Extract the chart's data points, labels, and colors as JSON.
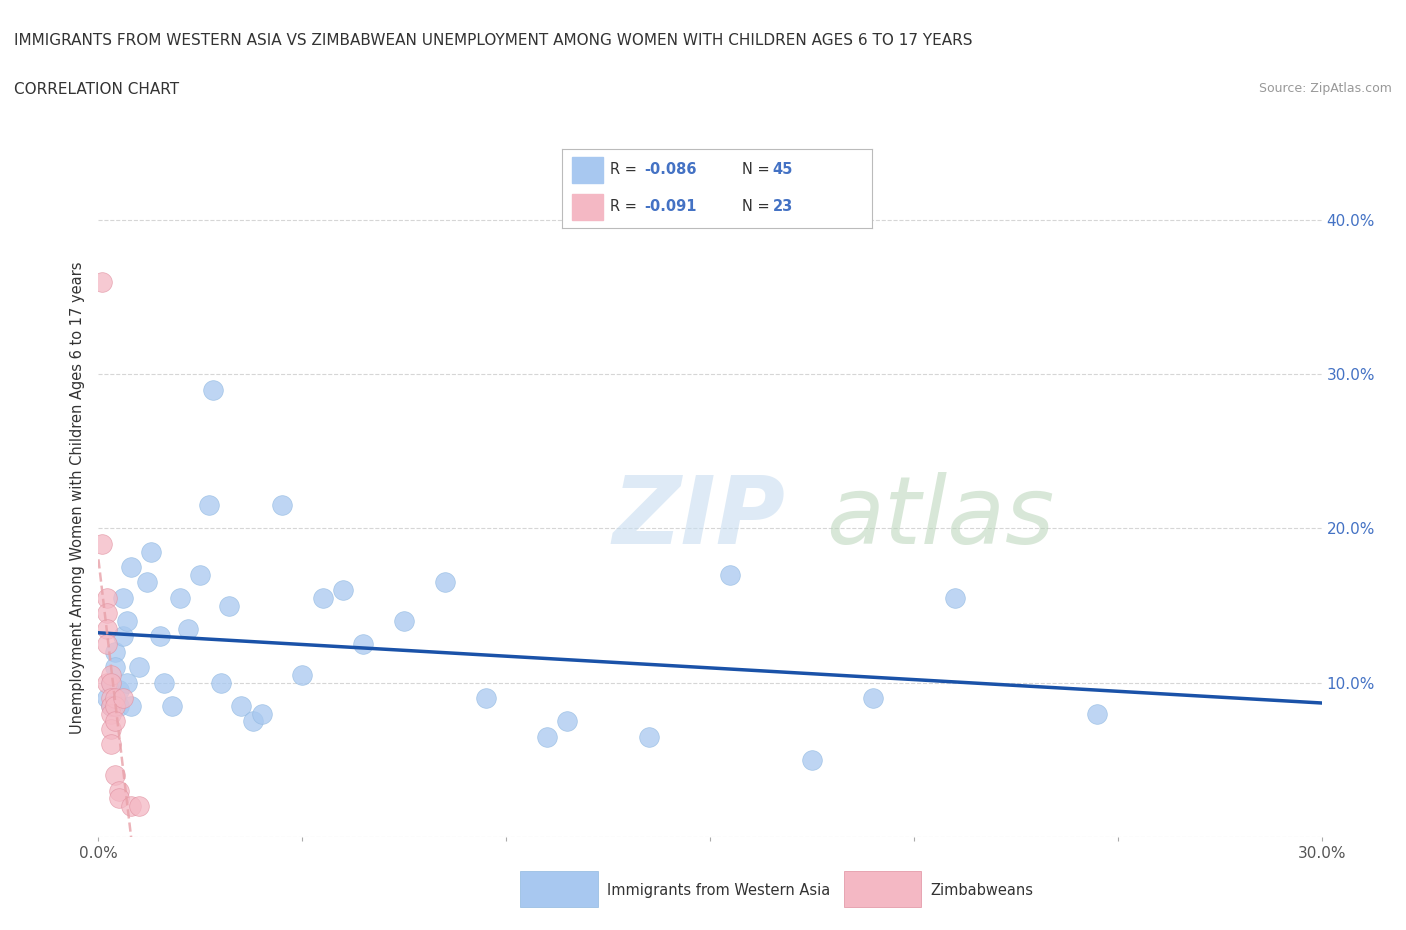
{
  "title": "IMMIGRANTS FROM WESTERN ASIA VS ZIMBABWEAN UNEMPLOYMENT AMONG WOMEN WITH CHILDREN AGES 6 TO 17 YEARS",
  "subtitle": "CORRELATION CHART",
  "source": "Source: ZipAtlas.com",
  "ylabel": "Unemployment Among Women with Children Ages 6 to 17 years",
  "xlim": [
    0.0,
    0.3
  ],
  "ylim": [
    0.0,
    0.44
  ],
  "xtick_positions": [
    0.0,
    0.05,
    0.1,
    0.15,
    0.2,
    0.25,
    0.3
  ],
  "xticklabels": [
    "0.0%",
    "",
    "",
    "",
    "",
    "",
    "30.0%"
  ],
  "ytick_right_positions": [
    0.1,
    0.2,
    0.3,
    0.4
  ],
  "ytick_right_labels": [
    "10.0%",
    "20.0%",
    "30.0%",
    "40.0%"
  ],
  "blue_R": -0.086,
  "blue_N": 45,
  "pink_R": -0.091,
  "pink_N": 23,
  "blue_color": "#a8c8f0",
  "pink_color": "#f4b8c4",
  "blue_line_color": "#1a52a8",
  "pink_line_color": "#e8a0a8",
  "legend1_label": "Immigrants from Western Asia",
  "legend2_label": "Zimbabweans",
  "blue_x": [
    0.002,
    0.003,
    0.003,
    0.004,
    0.004,
    0.005,
    0.005,
    0.006,
    0.006,
    0.007,
    0.007,
    0.008,
    0.008,
    0.01,
    0.012,
    0.013,
    0.015,
    0.016,
    0.018,
    0.02,
    0.022,
    0.025,
    0.027,
    0.028,
    0.03,
    0.032,
    0.035,
    0.038,
    0.04,
    0.045,
    0.05,
    0.055,
    0.06,
    0.065,
    0.075,
    0.085,
    0.095,
    0.11,
    0.115,
    0.135,
    0.155,
    0.175,
    0.19,
    0.21,
    0.245
  ],
  "blue_y": [
    0.09,
    0.1,
    0.085,
    0.12,
    0.11,
    0.095,
    0.085,
    0.13,
    0.155,
    0.14,
    0.1,
    0.085,
    0.175,
    0.11,
    0.165,
    0.185,
    0.13,
    0.1,
    0.085,
    0.155,
    0.135,
    0.17,
    0.215,
    0.29,
    0.1,
    0.15,
    0.085,
    0.075,
    0.08,
    0.215,
    0.105,
    0.155,
    0.16,
    0.125,
    0.14,
    0.165,
    0.09,
    0.065,
    0.075,
    0.065,
    0.17,
    0.05,
    0.09,
    0.155,
    0.08
  ],
  "pink_x": [
    0.001,
    0.001,
    0.002,
    0.002,
    0.002,
    0.002,
    0.002,
    0.003,
    0.003,
    0.003,
    0.003,
    0.003,
    0.003,
    0.003,
    0.004,
    0.004,
    0.004,
    0.004,
    0.005,
    0.005,
    0.006,
    0.008,
    0.01
  ],
  "pink_y": [
    0.36,
    0.19,
    0.155,
    0.145,
    0.135,
    0.125,
    0.1,
    0.105,
    0.1,
    0.09,
    0.085,
    0.08,
    0.07,
    0.06,
    0.09,
    0.085,
    0.075,
    0.04,
    0.03,
    0.025,
    0.09,
    0.02,
    0.02
  ]
}
